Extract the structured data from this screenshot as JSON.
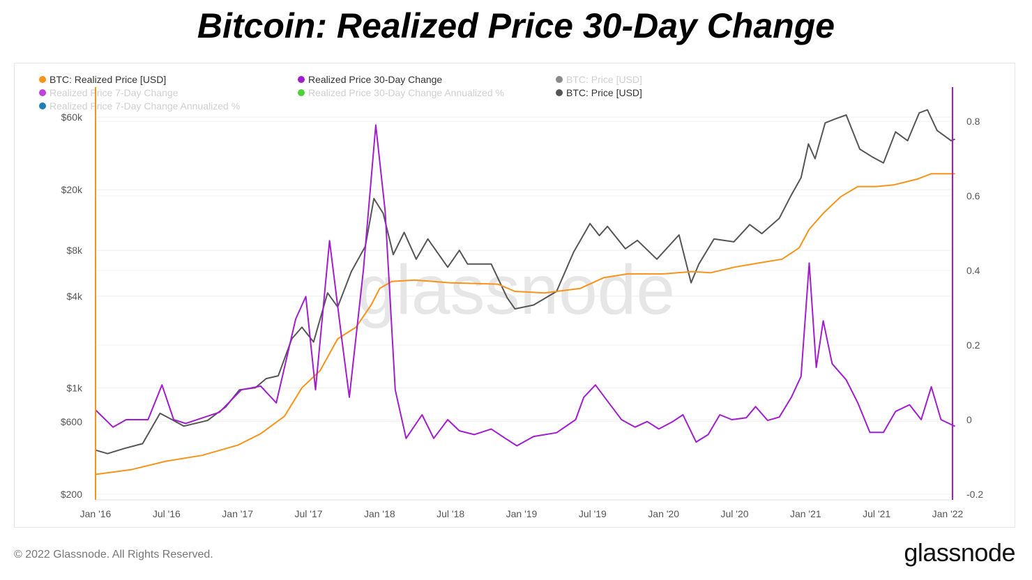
{
  "title": "Bitcoin: Realized Price 30-Day Change",
  "legend": [
    {
      "label": "BTC: Realized Price [USD]",
      "color": "#f7931a",
      "active": true
    },
    {
      "label": "Realized Price 30-Day Change",
      "color": "#a21ccf",
      "active": true
    },
    {
      "label": "BTC: Price [USD]",
      "color": "#8a8a8a",
      "active": false
    },
    {
      "label": "Realized Price 7-Day Change",
      "color": "#c040e0",
      "active": false
    },
    {
      "label": "Realized Price 30-Day Change Annualized %",
      "color": "#4cd137",
      "active": false
    },
    {
      "label": "BTC: Price [USD]",
      "color": "#555555",
      "active": true
    },
    {
      "label": "Realized Price 7-Day Change Annualized %",
      "color": "#1f7fb5",
      "active": false
    }
  ],
  "watermark": "glassnode",
  "footer": "© 2022 Glassnode. All Rights Reserved.",
  "logo": "glassnode",
  "chart_data": {
    "type": "line",
    "title": "Bitcoin: Realized Price 30-Day Change",
    "x_ticks": [
      "Jan '16",
      "Jul '16",
      "Jan '17",
      "Jul '17",
      "Jan '18",
      "Jul '18",
      "Jan '19",
      "Jul '19",
      "Jan '20",
      "Jul '20",
      "Jan '21",
      "Jul '21",
      "Jan '22"
    ],
    "xlim": [
      "2016-01-01",
      "2022-01-20"
    ],
    "left_axis": {
      "scale": "log",
      "ylim": [
        200,
        60000
      ],
      "ticks": [
        {
          "v": 200,
          "label": "$200"
        },
        {
          "v": 600,
          "label": "$600"
        },
        {
          "v": 1000,
          "label": "$1k"
        },
        {
          "v": 4000,
          "label": "$4k"
        },
        {
          "v": 8000,
          "label": "$8k"
        },
        {
          "v": 20000,
          "label": "$20k"
        },
        {
          "v": 60000,
          "label": "$60k"
        }
      ]
    },
    "right_axis": {
      "scale": "linear",
      "ylim": [
        -0.2,
        0.8
      ],
      "ticks": [
        -0.2,
        0,
        0.2,
        0.4,
        0.6,
        0.8
      ]
    },
    "grid": true,
    "legend_position": "top-left",
    "series": [
      {
        "name": "BTC: Realized Price [USD]",
        "axis": "left",
        "color": "#f7931a",
        "points": [
          [
            "2016-01-01",
            270
          ],
          [
            "2016-04-01",
            290
          ],
          [
            "2016-07-01",
            330
          ],
          [
            "2016-10-01",
            360
          ],
          [
            "2017-01-01",
            420
          ],
          [
            "2017-03-01",
            500
          ],
          [
            "2017-05-01",
            650
          ],
          [
            "2017-06-15",
            1000
          ],
          [
            "2017-08-01",
            1300
          ],
          [
            "2017-09-15",
            2100
          ],
          [
            "2017-11-01",
            2500
          ],
          [
            "2017-12-10",
            3500
          ],
          [
            "2018-01-01",
            4500
          ],
          [
            "2018-02-01",
            5000
          ],
          [
            "2018-04-01",
            5100
          ],
          [
            "2018-07-01",
            4900
          ],
          [
            "2018-11-01",
            4800
          ],
          [
            "2018-12-15",
            4300
          ],
          [
            "2019-03-01",
            4200
          ],
          [
            "2019-06-01",
            4500
          ],
          [
            "2019-08-01",
            5300
          ],
          [
            "2019-10-01",
            5600
          ],
          [
            "2020-01-01",
            5600
          ],
          [
            "2020-03-15",
            5800
          ],
          [
            "2020-05-01",
            5700
          ],
          [
            "2020-07-01",
            6200
          ],
          [
            "2020-09-01",
            6600
          ],
          [
            "2020-11-01",
            7000
          ],
          [
            "2020-12-15",
            8300
          ],
          [
            "2021-01-10",
            11000
          ],
          [
            "2021-02-15",
            14000
          ],
          [
            "2021-04-01",
            18000
          ],
          [
            "2021-05-15",
            21000
          ],
          [
            "2021-07-01",
            21000
          ],
          [
            "2021-08-15",
            21500
          ],
          [
            "2021-10-15",
            23500
          ],
          [
            "2021-11-20",
            25500
          ],
          [
            "2022-01-20",
            25500
          ]
        ]
      },
      {
        "name": "BTC: Price [USD]",
        "axis": "left",
        "color": "#555555",
        "points": [
          [
            "2016-01-01",
            390
          ],
          [
            "2016-02-01",
            370
          ],
          [
            "2016-03-15",
            400
          ],
          [
            "2016-05-01",
            430
          ],
          [
            "2016-06-15",
            680
          ],
          [
            "2016-07-15",
            620
          ],
          [
            "2016-08-15",
            560
          ],
          [
            "2016-10-15",
            610
          ],
          [
            "2016-12-01",
            750
          ],
          [
            "2017-01-05",
            970
          ],
          [
            "2017-02-15",
            1000
          ],
          [
            "2017-03-15",
            1150
          ],
          [
            "2017-04-15",
            1200
          ],
          [
            "2017-05-20",
            2100
          ],
          [
            "2017-06-15",
            2500
          ],
          [
            "2017-07-15",
            2000
          ],
          [
            "2017-08-20",
            4200
          ],
          [
            "2017-09-15",
            3400
          ],
          [
            "2017-10-20",
            5800
          ],
          [
            "2017-11-25",
            8500
          ],
          [
            "2017-12-17",
            17500
          ],
          [
            "2018-01-10",
            14000
          ],
          [
            "2018-02-05",
            7500
          ],
          [
            "2018-03-05",
            10500
          ],
          [
            "2018-04-05",
            7000
          ],
          [
            "2018-05-05",
            9500
          ],
          [
            "2018-06-25",
            6200
          ],
          [
            "2018-07-25",
            8000
          ],
          [
            "2018-08-15",
            6500
          ],
          [
            "2018-10-15",
            6500
          ],
          [
            "2018-11-25",
            3900
          ],
          [
            "2018-12-15",
            3300
          ],
          [
            "2019-02-01",
            3500
          ],
          [
            "2019-04-01",
            4300
          ],
          [
            "2019-05-15",
            7800
          ],
          [
            "2019-06-26",
            12000
          ],
          [
            "2019-07-20",
            10000
          ],
          [
            "2019-08-10",
            11500
          ],
          [
            "2019-09-25",
            8200
          ],
          [
            "2019-10-26",
            9300
          ],
          [
            "2019-12-15",
            7000
          ],
          [
            "2020-02-10",
            10100
          ],
          [
            "2020-03-12",
            4900
          ],
          [
            "2020-04-01",
            6500
          ],
          [
            "2020-05-10",
            9500
          ],
          [
            "2020-06-30",
            9100
          ],
          [
            "2020-08-10",
            11800
          ],
          [
            "2020-09-10",
            10300
          ],
          [
            "2020-10-25",
            13000
          ],
          [
            "2020-11-25",
            18500
          ],
          [
            "2020-12-20",
            24000
          ],
          [
            "2021-01-08",
            40000
          ],
          [
            "2021-01-25",
            32000
          ],
          [
            "2021-02-20",
            55000
          ],
          [
            "2021-03-15",
            58000
          ],
          [
            "2021-04-15",
            62000
          ],
          [
            "2021-05-20",
            37000
          ],
          [
            "2021-06-20",
            33000
          ],
          [
            "2021-07-20",
            30000
          ],
          [
            "2021-08-20",
            48000
          ],
          [
            "2021-09-20",
            42000
          ],
          [
            "2021-10-20",
            64000
          ],
          [
            "2021-11-10",
            67000
          ],
          [
            "2021-12-05",
            49000
          ],
          [
            "2022-01-10",
            42000
          ],
          [
            "2022-01-20",
            43000
          ]
        ]
      },
      {
        "name": "Realized Price 30-Day Change",
        "axis": "right",
        "color": "#a21ccf",
        "points": [
          [
            "2016-01-01",
            0.026
          ],
          [
            "2016-02-15",
            -0.02
          ],
          [
            "2016-03-20",
            0.0
          ],
          [
            "2016-05-15",
            0.0
          ],
          [
            "2016-06-20",
            0.093
          ],
          [
            "2016-07-20",
            0.0
          ],
          [
            "2016-08-20",
            -0.01
          ],
          [
            "2016-11-15",
            0.02
          ],
          [
            "2017-01-10",
            0.08
          ],
          [
            "2017-03-01",
            0.09
          ],
          [
            "2017-04-10",
            0.045
          ],
          [
            "2017-05-30",
            0.27
          ],
          [
            "2017-06-25",
            0.33
          ],
          [
            "2017-07-20",
            0.08
          ],
          [
            "2017-08-25",
            0.48
          ],
          [
            "2017-09-25",
            0.22
          ],
          [
            "2017-10-15",
            0.06
          ],
          [
            "2017-11-20",
            0.4
          ],
          [
            "2017-12-22",
            0.79
          ],
          [
            "2018-01-15",
            0.56
          ],
          [
            "2018-02-10",
            0.08
          ],
          [
            "2018-03-10",
            -0.05
          ],
          [
            "2018-04-20",
            0.013
          ],
          [
            "2018-05-20",
            -0.05
          ],
          [
            "2018-06-25",
            0.0
          ],
          [
            "2018-07-25",
            -0.03
          ],
          [
            "2018-09-01",
            -0.04
          ],
          [
            "2018-10-15",
            -0.025
          ],
          [
            "2018-11-20",
            -0.05
          ],
          [
            "2018-12-20",
            -0.07
          ],
          [
            "2019-02-01",
            -0.045
          ],
          [
            "2019-04-01",
            -0.035
          ],
          [
            "2019-05-20",
            0.0
          ],
          [
            "2019-06-10",
            0.06
          ],
          [
            "2019-07-10",
            0.093
          ],
          [
            "2019-08-10",
            0.05
          ],
          [
            "2019-09-15",
            0.0
          ],
          [
            "2019-10-20",
            -0.02
          ],
          [
            "2019-11-20",
            -0.005
          ],
          [
            "2019-12-20",
            -0.025
          ],
          [
            "2020-01-25",
            -0.005
          ],
          [
            "2020-02-20",
            0.013
          ],
          [
            "2020-03-25",
            -0.06
          ],
          [
            "2020-04-25",
            -0.04
          ],
          [
            "2020-05-25",
            0.013
          ],
          [
            "2020-06-25",
            0.0
          ],
          [
            "2020-08-01",
            0.005
          ],
          [
            "2020-08-25",
            0.035
          ],
          [
            "2020-09-25",
            -0.002
          ],
          [
            "2020-10-25",
            0.007
          ],
          [
            "2020-11-25",
            0.06
          ],
          [
            "2020-12-20",
            0.116
          ],
          [
            "2021-01-10",
            0.42
          ],
          [
            "2021-01-28",
            0.14
          ],
          [
            "2021-02-15",
            0.265
          ],
          [
            "2021-03-10",
            0.15
          ],
          [
            "2021-04-15",
            0.107
          ],
          [
            "2021-05-15",
            0.045
          ],
          [
            "2021-06-15",
            -0.034
          ],
          [
            "2021-07-20",
            -0.034
          ],
          [
            "2021-08-20",
            0.022
          ],
          [
            "2021-09-25",
            0.04
          ],
          [
            "2021-10-25",
            0.0
          ],
          [
            "2021-11-20",
            0.088
          ],
          [
            "2021-12-15",
            0.0
          ],
          [
            "2022-01-20",
            -0.018
          ]
        ]
      }
    ]
  }
}
